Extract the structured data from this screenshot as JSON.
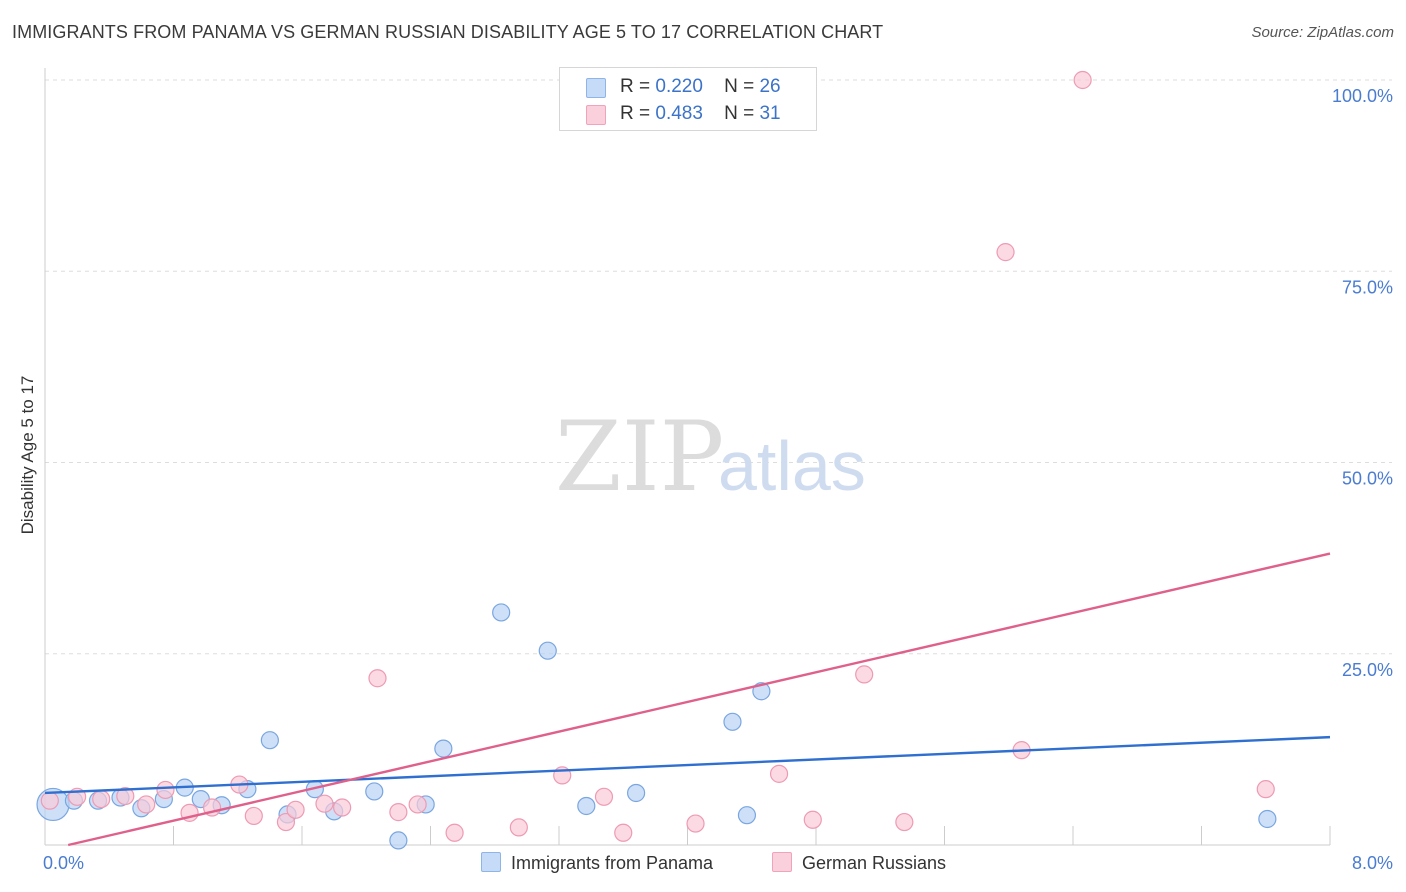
{
  "header": {
    "title": "IMMIGRANTS FROM PANAMA VS GERMAN RUSSIAN DISABILITY AGE 5 TO 17 CORRELATION CHART",
    "source": "Source: ZipAtlas.com"
  },
  "watermark": {
    "zip": "ZIP",
    "atlas": "atlas"
  },
  "legend": {
    "r_label": "R =",
    "n_label": "N =",
    "rows": [
      {
        "r": "0.220",
        "n": "26",
        "color": "#a9c8f0"
      },
      {
        "r": "0.483",
        "n": "31",
        "color": "#f5b8cb"
      }
    ]
  },
  "colors": {
    "blue_fill": "#b9d3f5",
    "blue_stroke": "#7aa6e0",
    "blue_line": "#2f6fd0",
    "pink_fill": "#f9cad8",
    "pink_stroke": "#ee9ab3",
    "pink_line": "#e0608c",
    "grid": "#dddddd",
    "tick_text": "#4a7cd0"
  },
  "chart_data": {
    "type": "scatter",
    "title": "IMMIGRANTS FROM PANAMA VS GERMAN RUSSIAN DISABILITY AGE 5 TO 17 CORRELATION CHART",
    "xlabel": "",
    "ylabel": "Disability Age 5 to 17",
    "xlim": [
      0,
      8
    ],
    "ylim": [
      0,
      100
    ],
    "x_tick_labels": [
      "0.0%",
      "8.0%"
    ],
    "y_ticks": [
      25,
      50,
      75,
      100
    ],
    "y_tick_labels": [
      "25.0%",
      "50.0%",
      "75.0%",
      "100.0%"
    ],
    "grid": true,
    "series": [
      {
        "name": "Immigrants from Panama",
        "points": [
          {
            "x": 0.05,
            "y": 5.3
          },
          {
            "x": 0.18,
            "y": 5.8
          },
          {
            "x": 0.33,
            "y": 5.8
          },
          {
            "x": 0.47,
            "y": 6.2
          },
          {
            "x": 0.6,
            "y": 4.8
          },
          {
            "x": 0.74,
            "y": 6.0
          },
          {
            "x": 0.87,
            "y": 7.5
          },
          {
            "x": 0.97,
            "y": 6.0
          },
          {
            "x": 1.1,
            "y": 5.2
          },
          {
            "x": 1.26,
            "y": 7.3
          },
          {
            "x": 1.4,
            "y": 13.7
          },
          {
            "x": 1.51,
            "y": 4.0
          },
          {
            "x": 1.68,
            "y": 7.3
          },
          {
            "x": 1.8,
            "y": 4.4
          },
          {
            "x": 2.05,
            "y": 7.0
          },
          {
            "x": 2.2,
            "y": 0.6
          },
          {
            "x": 2.37,
            "y": 5.3
          },
          {
            "x": 2.48,
            "y": 12.6
          },
          {
            "x": 2.84,
            "y": 30.4
          },
          {
            "x": 3.13,
            "y": 25.4
          },
          {
            "x": 3.37,
            "y": 5.1
          },
          {
            "x": 3.68,
            "y": 6.8
          },
          {
            "x": 4.28,
            "y": 16.1
          },
          {
            "x": 4.37,
            "y": 3.9
          },
          {
            "x": 4.46,
            "y": 20.1
          },
          {
            "x": 7.61,
            "y": 3.4
          }
        ],
        "trend": {
          "x": [
            0,
            8
          ],
          "y": [
            6.8,
            14.1
          ]
        }
      },
      {
        "name": "German Russians",
        "points": [
          {
            "x": 0.03,
            "y": 5.8
          },
          {
            "x": 0.2,
            "y": 6.3
          },
          {
            "x": 0.35,
            "y": 6.0
          },
          {
            "x": 0.5,
            "y": 6.4
          },
          {
            "x": 0.63,
            "y": 5.3
          },
          {
            "x": 0.75,
            "y": 7.2
          },
          {
            "x": 0.9,
            "y": 4.2
          },
          {
            "x": 1.04,
            "y": 4.9
          },
          {
            "x": 1.21,
            "y": 7.9
          },
          {
            "x": 1.3,
            "y": 3.8
          },
          {
            "x": 1.5,
            "y": 3.0
          },
          {
            "x": 1.56,
            "y": 4.6
          },
          {
            "x": 1.74,
            "y": 5.4
          },
          {
            "x": 1.85,
            "y": 4.9
          },
          {
            "x": 2.07,
            "y": 21.8
          },
          {
            "x": 2.2,
            "y": 4.3
          },
          {
            "x": 2.32,
            "y": 5.3
          },
          {
            "x": 2.55,
            "y": 1.6
          },
          {
            "x": 2.95,
            "y": 2.3
          },
          {
            "x": 3.22,
            "y": 9.1
          },
          {
            "x": 3.48,
            "y": 6.3
          },
          {
            "x": 3.6,
            "y": 1.6
          },
          {
            "x": 4.05,
            "y": 2.8
          },
          {
            "x": 4.57,
            "y": 9.3
          },
          {
            "x": 4.78,
            "y": 3.3
          },
          {
            "x": 5.1,
            "y": 22.3
          },
          {
            "x": 5.35,
            "y": 3.0
          },
          {
            "x": 5.98,
            "y": 77.5
          },
          {
            "x": 6.08,
            "y": 12.4
          },
          {
            "x": 6.46,
            "y": 100.0
          },
          {
            "x": 7.6,
            "y": 7.3
          }
        ],
        "trend": {
          "x": [
            0,
            8
          ],
          "y": [
            -0.7,
            38.1
          ]
        }
      }
    ]
  },
  "bottom_legend": [
    {
      "label": "Immigrants from Panama"
    },
    {
      "label": "German Russians"
    }
  ]
}
